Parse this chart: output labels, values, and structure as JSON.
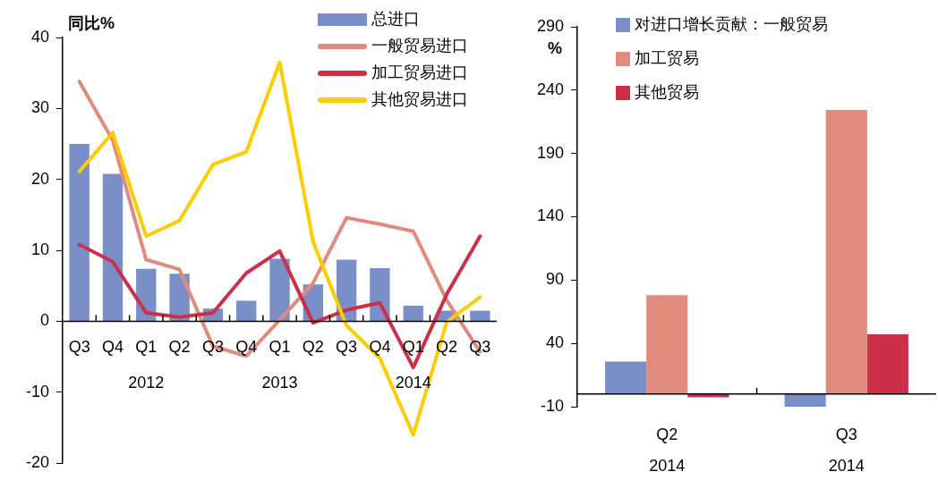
{
  "chart_data": [
    {
      "type": "bar",
      "ylabel": "同比%",
      "categories": [
        "Q3",
        "Q4",
        "Q1",
        "Q2",
        "Q3",
        "Q4",
        "Q1",
        "Q2",
        "Q3",
        "Q4",
        "Q1",
        "Q2",
        "Q3"
      ],
      "series": [
        {
          "name": "总进口",
          "type": "bar",
          "color": "#7a8fc7",
          "values": [
            25.0,
            20.8,
            7.4,
            6.7,
            1.8,
            2.9,
            8.8,
            5.2,
            8.7,
            7.5,
            2.2,
            1.5,
            1.5
          ]
        },
        {
          "name": "一般贸易进口",
          "type": "line",
          "color": "#e08b7e",
          "values": [
            33.8,
            25.5,
            8.7,
            7.3,
            -3.5,
            -4.9,
            0.2,
            5.4,
            14.6,
            13.7,
            12.7,
            3.0,
            -4.3
          ]
        },
        {
          "name": "加工贸易进口",
          "type": "line",
          "color": "#cc3049",
          "values": [
            10.8,
            8.4,
            1.2,
            0.6,
            1.2,
            6.8,
            9.9,
            -0.2,
            1.6,
            2.6,
            -6.5,
            3.8,
            12.0
          ]
        },
        {
          "name": "其他贸易进口",
          "type": "line",
          "color": "#ffcc00",
          "values": [
            21.1,
            26.6,
            12.0,
            14.2,
            22.1,
            23.9,
            36.5,
            11.2,
            -0.6,
            -5.2,
            -16.0,
            -0.1,
            3.4
          ]
        }
      ],
      "ylim": [
        -20,
        40
      ],
      "yticks": [
        -20,
        -10,
        0,
        10,
        20,
        30,
        40
      ],
      "legend": "top right",
      "marker": "none",
      "annotations": [
        "2012",
        "2013",
        "2014"
      ]
    },
    {
      "type": "bar",
      "ylabel": "%",
      "categories": [
        "Q2",
        "Q3"
      ],
      "series": [
        {
          "name": "对进口增长贡献：一般贸易",
          "color": "#7a8fc7",
          "values": [
            25.7,
            -10
          ]
        },
        {
          "name": "加工贸易",
          "color": "#e08b7e",
          "values": [
            78.1,
            224.3
          ]
        },
        {
          "name": "其他贸易",
          "color": "#cc3049",
          "values": [
            -2.5,
            47.2
          ]
        }
      ],
      "ylim": [
        -10,
        290
      ],
      "yticks": [
        -10,
        40,
        90,
        140,
        190,
        240,
        290
      ],
      "legend": "top left",
      "annotations": [
        "2014",
        "2014"
      ]
    }
  ]
}
